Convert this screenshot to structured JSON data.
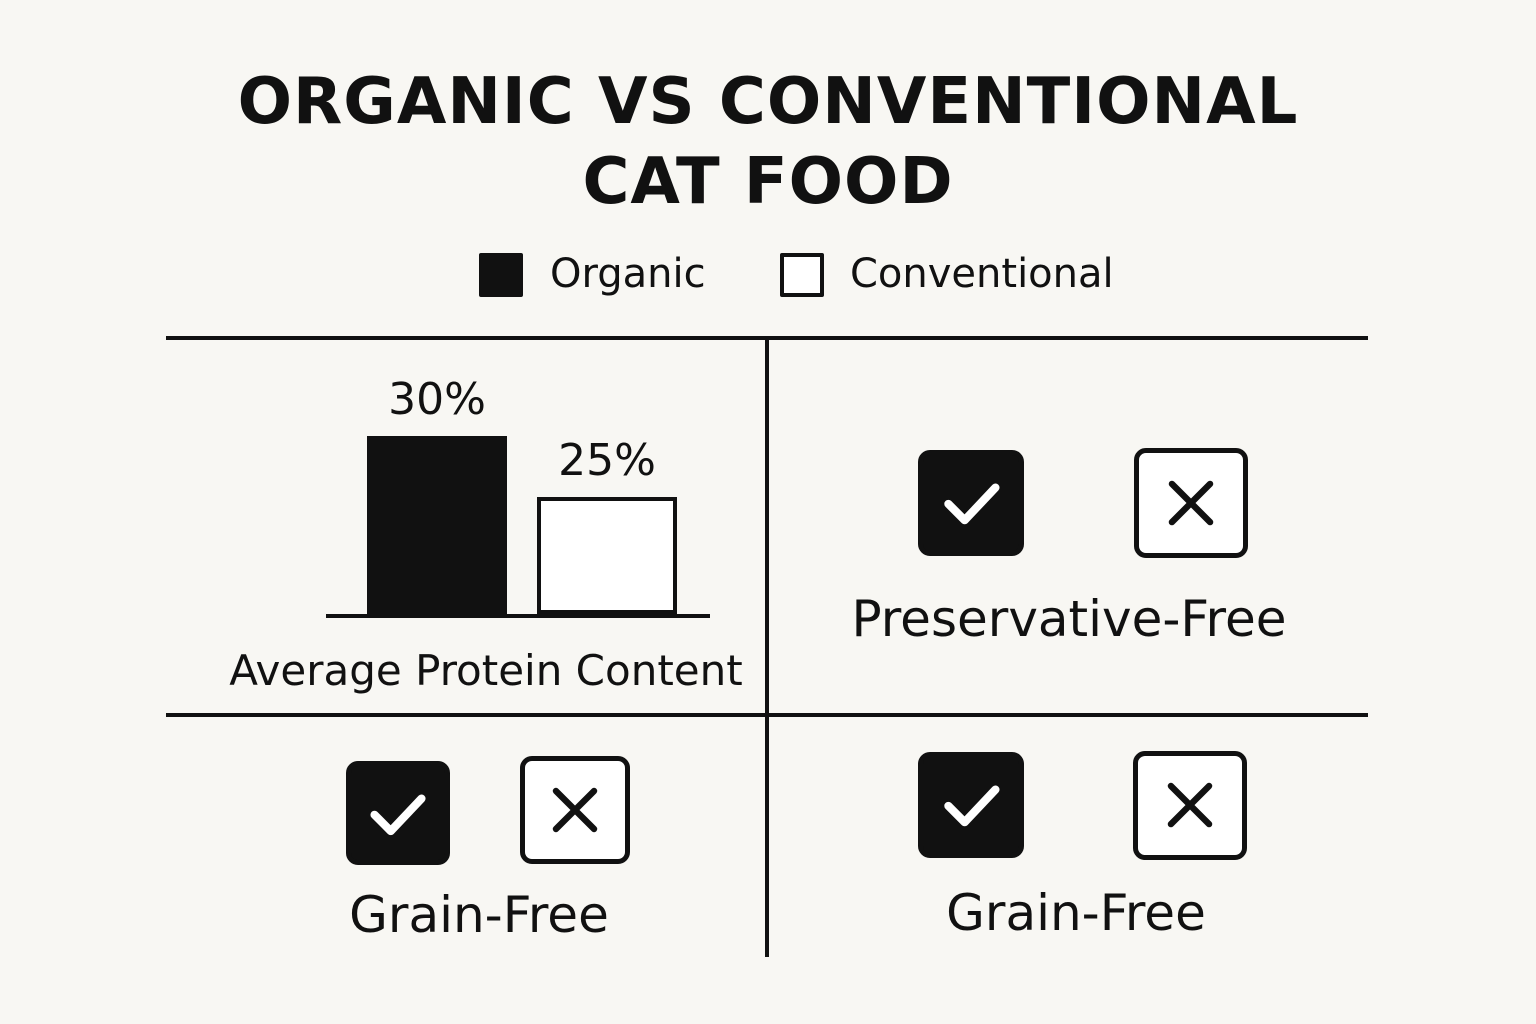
{
  "title": {
    "line1": "ORGANIC VS CONVENTIONAL",
    "line2": "CAT FOOD"
  },
  "legend": [
    {
      "label": "Organic",
      "swatch": "filled",
      "color": "#111111"
    },
    {
      "label": "Conventional",
      "swatch": "outline",
      "color": "#ffffff"
    }
  ],
  "protein": {
    "caption": "Average Protein Content",
    "organic_label": "30%",
    "conventional_label": "25%"
  },
  "chart_data": {
    "type": "bar",
    "categories": [
      "Organic",
      "Conventional"
    ],
    "values": [
      30,
      25
    ],
    "title": "",
    "xlabel": "Average Protein Content",
    "ylabel": "",
    "unit": "%",
    "grid": false
  },
  "cells": {
    "top_right": {
      "caption": "Preservative-Free",
      "organic_icon": "check-icon",
      "conventional_icon": "x-icon"
    },
    "bottom_left": {
      "caption": "Grain-Free",
      "organic_icon": "check-icon",
      "conventional_icon": "x-icon"
    },
    "bottom_right": {
      "caption": "Grain-Free",
      "organic_icon": "check-icon",
      "conventional_icon": "x-icon"
    }
  },
  "colors": {
    "background": "#f8f7f3",
    "ink": "#111111"
  }
}
